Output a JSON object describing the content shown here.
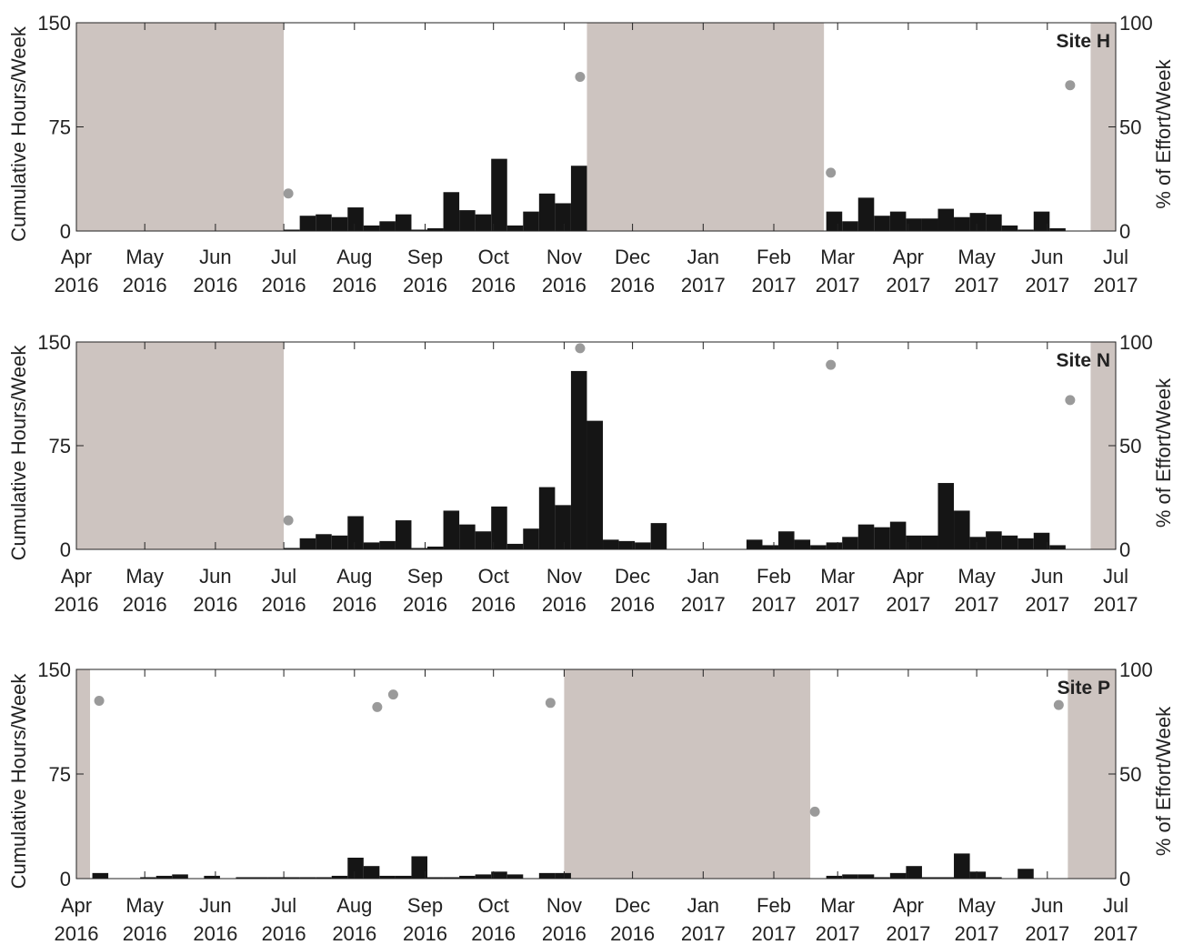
{
  "colors": {
    "bar": "#151515",
    "effort": "#9a9a9a",
    "noData": "#cdc4c0",
    "axis": "#222222"
  },
  "chart_data": [
    {
      "type": "bar",
      "title": "Site H",
      "ylabel": "Cumulative Hours/Week",
      "y2label": "% of Effort/Week",
      "ylim": [
        0,
        150
      ],
      "y2lim": [
        0,
        100
      ],
      "yticks": [
        "0",
        "75",
        "150"
      ],
      "y2ticks": [
        "0",
        "50",
        "100"
      ],
      "xlim": [
        "2016-04-01",
        "2017-07-01"
      ],
      "xtick_months": [
        "Apr",
        "May",
        "Jun",
        "Jul",
        "Aug",
        "Sep",
        "Oct",
        "Nov",
        "Dec",
        "Jan",
        "Feb",
        "Mar",
        "Apr",
        "May",
        "Jun",
        "Jul"
      ],
      "xtick_years": [
        "2016",
        "2016",
        "2016",
        "2016",
        "2016",
        "2016",
        "2016",
        "2016",
        "2016",
        "2017",
        "2017",
        "2017",
        "2017",
        "2017",
        "2017",
        "2017"
      ],
      "no_data_periods": [
        [
          "2016-04-01",
          "2016-07-01"
        ],
        [
          "2016-11-11",
          "2017-02-23"
        ],
        [
          "2017-06-20",
          "2017-07-01"
        ]
      ],
      "bars": [
        {
          "week": "2016-07-01",
          "hours": 1
        },
        {
          "week": "2016-07-08",
          "hours": 11
        },
        {
          "week": "2016-07-15",
          "hours": 12
        },
        {
          "week": "2016-07-22",
          "hours": 10
        },
        {
          "week": "2016-07-29",
          "hours": 17
        },
        {
          "week": "2016-08-05",
          "hours": 4
        },
        {
          "week": "2016-08-12",
          "hours": 7
        },
        {
          "week": "2016-08-19",
          "hours": 12
        },
        {
          "week": "2016-08-26",
          "hours": 1
        },
        {
          "week": "2016-09-02",
          "hours": 2
        },
        {
          "week": "2016-09-09",
          "hours": 28
        },
        {
          "week": "2016-09-16",
          "hours": 15
        },
        {
          "week": "2016-09-23",
          "hours": 12
        },
        {
          "week": "2016-09-30",
          "hours": 52
        },
        {
          "week": "2016-10-07",
          "hours": 4
        },
        {
          "week": "2016-10-14",
          "hours": 14
        },
        {
          "week": "2016-10-21",
          "hours": 27
        },
        {
          "week": "2016-10-28",
          "hours": 20
        },
        {
          "week": "2016-11-04",
          "hours": 47
        },
        {
          "week": "2017-02-24",
          "hours": 14
        },
        {
          "week": "2017-03-03",
          "hours": 7
        },
        {
          "week": "2017-03-10",
          "hours": 24
        },
        {
          "week": "2017-03-17",
          "hours": 11
        },
        {
          "week": "2017-03-24",
          "hours": 14
        },
        {
          "week": "2017-03-31",
          "hours": 9
        },
        {
          "week": "2017-04-07",
          "hours": 9
        },
        {
          "week": "2017-04-14",
          "hours": 16
        },
        {
          "week": "2017-04-21",
          "hours": 10
        },
        {
          "week": "2017-04-28",
          "hours": 13
        },
        {
          "week": "2017-05-05",
          "hours": 12
        },
        {
          "week": "2017-05-12",
          "hours": 4
        },
        {
          "week": "2017-05-19",
          "hours": 1
        },
        {
          "week": "2017-05-26",
          "hours": 14
        },
        {
          "week": "2017-06-02",
          "hours": 2
        }
      ],
      "effort_points": [
        {
          "date": "2016-07-03",
          "percent": 18
        },
        {
          "date": "2016-11-08",
          "percent": 74
        },
        {
          "date": "2017-02-26",
          "percent": 28
        },
        {
          "date": "2017-06-11",
          "percent": 70
        }
      ]
    },
    {
      "type": "bar",
      "title": "Site N",
      "ylabel": "Cumulative Hours/Week",
      "y2label": "% of Effort/Week",
      "ylim": [
        0,
        150
      ],
      "y2lim": [
        0,
        100
      ],
      "yticks": [
        "0",
        "75",
        "150"
      ],
      "y2ticks": [
        "0",
        "50",
        "100"
      ],
      "xlim": [
        "2016-04-01",
        "2017-07-01"
      ],
      "xtick_months": [
        "Apr",
        "May",
        "Jun",
        "Jul",
        "Aug",
        "Sep",
        "Oct",
        "Nov",
        "Dec",
        "Jan",
        "Feb",
        "Mar",
        "Apr",
        "May",
        "Jun",
        "Jul"
      ],
      "xtick_years": [
        "2016",
        "2016",
        "2016",
        "2016",
        "2016",
        "2016",
        "2016",
        "2016",
        "2016",
        "2017",
        "2017",
        "2017",
        "2017",
        "2017",
        "2017",
        "2017"
      ],
      "no_data_periods": [
        [
          "2016-04-01",
          "2016-07-01"
        ],
        [
          "2017-06-20",
          "2017-07-01"
        ]
      ],
      "bars": [
        {
          "week": "2016-07-01",
          "hours": 1
        },
        {
          "week": "2016-07-08",
          "hours": 8
        },
        {
          "week": "2016-07-15",
          "hours": 11
        },
        {
          "week": "2016-07-22",
          "hours": 10
        },
        {
          "week": "2016-07-29",
          "hours": 24
        },
        {
          "week": "2016-08-05",
          "hours": 5
        },
        {
          "week": "2016-08-12",
          "hours": 6
        },
        {
          "week": "2016-08-19",
          "hours": 21
        },
        {
          "week": "2016-08-26",
          "hours": 1
        },
        {
          "week": "2016-09-02",
          "hours": 2
        },
        {
          "week": "2016-09-09",
          "hours": 28
        },
        {
          "week": "2016-09-16",
          "hours": 18
        },
        {
          "week": "2016-09-23",
          "hours": 13
        },
        {
          "week": "2016-09-30",
          "hours": 31
        },
        {
          "week": "2016-10-07",
          "hours": 4
        },
        {
          "week": "2016-10-14",
          "hours": 15
        },
        {
          "week": "2016-10-21",
          "hours": 45
        },
        {
          "week": "2016-10-28",
          "hours": 32
        },
        {
          "week": "2016-11-04",
          "hours": 129
        },
        {
          "week": "2016-11-11",
          "hours": 93
        },
        {
          "week": "2016-11-18",
          "hours": 7
        },
        {
          "week": "2016-11-25",
          "hours": 6
        },
        {
          "week": "2016-12-02",
          "hours": 5
        },
        {
          "week": "2016-12-09",
          "hours": 19
        },
        {
          "week": "2017-01-20",
          "hours": 7
        },
        {
          "week": "2017-01-27",
          "hours": 3
        },
        {
          "week": "2017-02-03",
          "hours": 13
        },
        {
          "week": "2017-02-10",
          "hours": 7
        },
        {
          "week": "2017-02-17",
          "hours": 3
        },
        {
          "week": "2017-02-24",
          "hours": 5
        },
        {
          "week": "2017-03-03",
          "hours": 9
        },
        {
          "week": "2017-03-10",
          "hours": 18
        },
        {
          "week": "2017-03-17",
          "hours": 16
        },
        {
          "week": "2017-03-24",
          "hours": 20
        },
        {
          "week": "2017-03-31",
          "hours": 10
        },
        {
          "week": "2017-04-07",
          "hours": 10
        },
        {
          "week": "2017-04-14",
          "hours": 48
        },
        {
          "week": "2017-04-21",
          "hours": 28
        },
        {
          "week": "2017-04-28",
          "hours": 9
        },
        {
          "week": "2017-05-05",
          "hours": 13
        },
        {
          "week": "2017-05-12",
          "hours": 10
        },
        {
          "week": "2017-05-19",
          "hours": 8
        },
        {
          "week": "2017-05-26",
          "hours": 12
        },
        {
          "week": "2017-06-02",
          "hours": 3
        }
      ],
      "effort_points": [
        {
          "date": "2016-07-03",
          "percent": 14
        },
        {
          "date": "2016-11-08",
          "percent": 97
        },
        {
          "date": "2017-02-26",
          "percent": 89
        },
        {
          "date": "2017-06-11",
          "percent": 72
        }
      ]
    },
    {
      "type": "bar",
      "title": "Site P",
      "ylabel": "Cumulative Hours/Week",
      "y2label": "% of Effort/Week",
      "ylim": [
        0,
        150
      ],
      "y2lim": [
        0,
        100
      ],
      "yticks": [
        "0",
        "75",
        "150"
      ],
      "y2ticks": [
        "0",
        "50",
        "100"
      ],
      "xlim": [
        "2016-04-01",
        "2017-07-01"
      ],
      "xtick_months": [
        "Apr",
        "May",
        "Jun",
        "Jul",
        "Aug",
        "Sep",
        "Oct",
        "Nov",
        "Dec",
        "Jan",
        "Feb",
        "Mar",
        "Apr",
        "May",
        "Jun",
        "Jul"
      ],
      "xtick_years": [
        "2016",
        "2016",
        "2016",
        "2016",
        "2016",
        "2016",
        "2016",
        "2016",
        "2016",
        "2017",
        "2017",
        "2017",
        "2017",
        "2017",
        "2017",
        "2017"
      ],
      "no_data_periods": [
        [
          "2016-04-01",
          "2016-04-07"
        ],
        [
          "2016-11-01",
          "2017-02-17"
        ],
        [
          "2017-06-10",
          "2017-07-01"
        ]
      ],
      "bars": [
        {
          "week": "2016-04-08",
          "hours": 4
        },
        {
          "week": "2016-04-29",
          "hours": 1
        },
        {
          "week": "2016-05-06",
          "hours": 2
        },
        {
          "week": "2016-05-13",
          "hours": 3
        },
        {
          "week": "2016-05-27",
          "hours": 2
        },
        {
          "week": "2016-06-10",
          "hours": 1
        },
        {
          "week": "2016-06-17",
          "hours": 1
        },
        {
          "week": "2016-06-24",
          "hours": 1
        },
        {
          "week": "2016-07-01",
          "hours": 1
        },
        {
          "week": "2016-07-08",
          "hours": 1
        },
        {
          "week": "2016-07-15",
          "hours": 1
        },
        {
          "week": "2016-07-22",
          "hours": 2
        },
        {
          "week": "2016-07-29",
          "hours": 15
        },
        {
          "week": "2016-08-05",
          "hours": 9
        },
        {
          "week": "2016-08-12",
          "hours": 2
        },
        {
          "week": "2016-08-19",
          "hours": 2
        },
        {
          "week": "2016-08-26",
          "hours": 16
        },
        {
          "week": "2016-09-02",
          "hours": 1
        },
        {
          "week": "2016-09-09",
          "hours": 1
        },
        {
          "week": "2016-09-16",
          "hours": 2
        },
        {
          "week": "2016-09-23",
          "hours": 3
        },
        {
          "week": "2016-09-30",
          "hours": 5
        },
        {
          "week": "2016-10-07",
          "hours": 3
        },
        {
          "week": "2016-10-21",
          "hours": 4
        },
        {
          "week": "2016-10-28",
          "hours": 4
        },
        {
          "week": "2017-02-24",
          "hours": 2
        },
        {
          "week": "2017-03-03",
          "hours": 3
        },
        {
          "week": "2017-03-10",
          "hours": 3
        },
        {
          "week": "2017-03-17",
          "hours": 1
        },
        {
          "week": "2017-03-24",
          "hours": 4
        },
        {
          "week": "2017-03-31",
          "hours": 9
        },
        {
          "week": "2017-04-07",
          "hours": 1
        },
        {
          "week": "2017-04-14",
          "hours": 1
        },
        {
          "week": "2017-04-21",
          "hours": 18
        },
        {
          "week": "2017-04-28",
          "hours": 5
        },
        {
          "week": "2017-05-05",
          "hours": 1
        },
        {
          "week": "2017-05-19",
          "hours": 7
        }
      ],
      "effort_points": [
        {
          "date": "2016-04-11",
          "percent": 85
        },
        {
          "date": "2016-08-11",
          "percent": 82
        },
        {
          "date": "2016-08-18",
          "percent": 88
        },
        {
          "date": "2016-10-26",
          "percent": 84
        },
        {
          "date": "2017-02-19",
          "percent": 32
        },
        {
          "date": "2017-06-06",
          "percent": 83
        }
      ]
    }
  ]
}
